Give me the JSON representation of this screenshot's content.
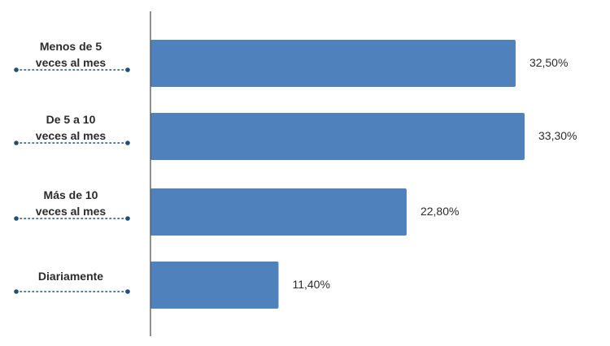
{
  "chart_data": {
    "type": "bar",
    "orientation": "horizontal",
    "categories": [
      [
        "Menos de 5",
        "veces al mes"
      ],
      [
        "De 5 a 10",
        "veces al mes"
      ],
      [
        "Más de 10",
        "veces al mes"
      ],
      [
        "Diariamente"
      ]
    ],
    "values": [
      32.5,
      33.3,
      22.8,
      11.4
    ],
    "value_labels": [
      "32,50%",
      "33,30%",
      "22,80%",
      "11,40%"
    ],
    "title": "",
    "xlabel": "",
    "ylabel": "",
    "xlim": [
      0,
      33.3
    ],
    "grid": false,
    "legend": "none",
    "colors": {
      "bar": "#4f81bd",
      "axis": "#555555",
      "leader": "#1f4e79",
      "text": "#2b2b2b"
    }
  }
}
